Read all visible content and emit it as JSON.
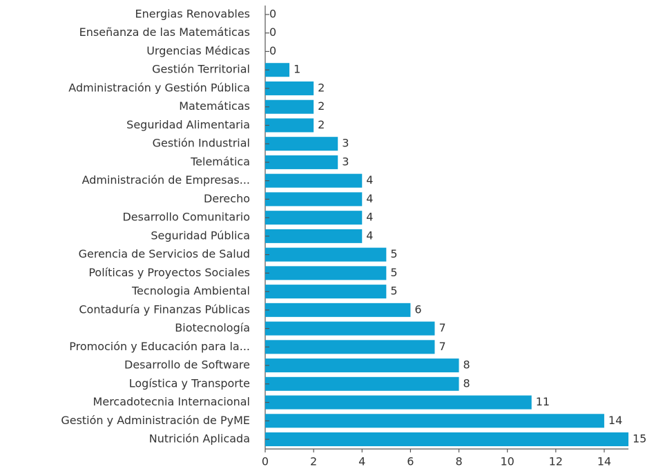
{
  "chart_data": {
    "type": "barh",
    "color": "#0ea1d3",
    "categories": [
      "Energias Renovables",
      "Enseñanza de las Matemáticas",
      "Urgencias Médicas",
      "Gestión Territorial",
      "Administración y Gestión Pública",
      "Matemáticas",
      "Seguridad Alimentaria",
      "Gestión Industrial",
      "Telemática",
      "Administración de Empresas...",
      "Derecho",
      "Desarrollo Comunitario",
      "Seguridad Pública",
      "Gerencia de Servicios de Salud",
      "Políticas y Proyectos Sociales",
      "Tecnologia Ambiental",
      "Contaduría y Finanzas Públicas",
      "Biotecnología",
      "Promoción y Educación para la...",
      "Desarrollo de Software",
      "Logística y Transporte",
      "Mercadotecnia Internacional",
      "Gestión y Administración de PyME",
      "Nutrición Aplicada"
    ],
    "values": [
      0,
      0,
      0,
      1,
      2,
      2,
      2,
      3,
      3,
      4,
      4,
      4,
      4,
      5,
      5,
      5,
      6,
      7,
      7,
      8,
      8,
      11,
      14,
      15
    ],
    "xlim": [
      0,
      15
    ],
    "xticks": [
      0,
      2,
      4,
      6,
      8,
      10,
      12,
      14
    ]
  }
}
